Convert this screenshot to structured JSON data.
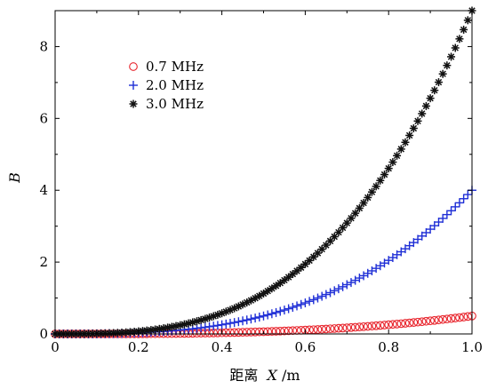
{
  "chart_data": {
    "type": "scatter",
    "xlabel_prefix": "距离",
    "xlabel_var": "X",
    "xlabel_unit": "/m",
    "ylabel": "B",
    "xlim": [
      0,
      1.0
    ],
    "ylim": [
      0,
      9
    ],
    "xticks": [
      "0",
      "0.2",
      "0.4",
      "0.6",
      "0.8",
      "1.0"
    ],
    "yticks": [
      "0",
      "2",
      "4",
      "6",
      "8"
    ],
    "grid": false,
    "legend_position": "top-left",
    "series": [
      {
        "name": "0.7 MHz",
        "marker": "circle",
        "color": "#e8242c",
        "coef": 0.5
      },
      {
        "name": "2.0 MHz",
        "marker": "plus",
        "color": "#1f2fd6",
        "coef": 4.0
      },
      {
        "name": "3.0 MHz",
        "marker": "asterisk",
        "color": "#111111",
        "coef": 9.0
      }
    ],
    "x": [
      0.0,
      0.01,
      0.02,
      0.03,
      0.04,
      0.05,
      0.06,
      0.07,
      0.08,
      0.09,
      0.1,
      0.11,
      0.12,
      0.13,
      0.14,
      0.15,
      0.16,
      0.17,
      0.18,
      0.19,
      0.2,
      0.21,
      0.22,
      0.23,
      0.24,
      0.25,
      0.26,
      0.27,
      0.28,
      0.29,
      0.3,
      0.31,
      0.32,
      0.33,
      0.34,
      0.35,
      0.36,
      0.37,
      0.38,
      0.39,
      0.4,
      0.41,
      0.42,
      0.43,
      0.44,
      0.45,
      0.46,
      0.47,
      0.48,
      0.49,
      0.5,
      0.51,
      0.52,
      0.53,
      0.54,
      0.55,
      0.56,
      0.57,
      0.58,
      0.59,
      0.6,
      0.61,
      0.62,
      0.63,
      0.64,
      0.65,
      0.66,
      0.67,
      0.68,
      0.69,
      0.7,
      0.71,
      0.72,
      0.73,
      0.74,
      0.75,
      0.76,
      0.77,
      0.78,
      0.79,
      0.8,
      0.81,
      0.82,
      0.83,
      0.84,
      0.85,
      0.86,
      0.87,
      0.88,
      0.89,
      0.9,
      0.91,
      0.92,
      0.93,
      0.94,
      0.95,
      0.96,
      0.97,
      0.98,
      0.99,
      1.0
    ]
  }
}
